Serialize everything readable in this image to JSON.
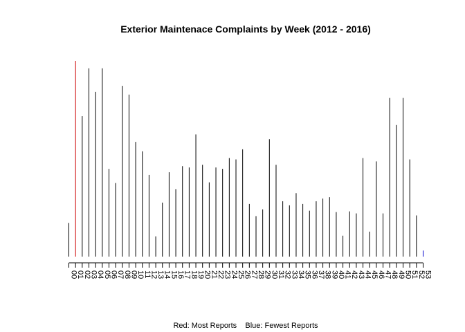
{
  "chart_data": {
    "type": "bar",
    "title": "Exterior Maintenace Complaints by Week (2012 - 2016)",
    "caption": "Red: Most Reports    Blue: Fewest Reports",
    "xlabel": "",
    "ylabel": "",
    "y_axis_visible": false,
    "grid": false,
    "legend": "none",
    "ylim": [
      0,
      29
    ],
    "categories": [
      "00",
      "01",
      "02",
      "03",
      "04",
      "05",
      "06",
      "07",
      "08",
      "09",
      "10",
      "11",
      "12",
      "13",
      "14",
      "15",
      "16",
      "17",
      "18",
      "19",
      "20",
      "21",
      "22",
      "23",
      "24",
      "25",
      "26",
      "27",
      "28",
      "29",
      "30",
      "31",
      "32",
      "33",
      "34",
      "35",
      "36",
      "37",
      "38",
      "39",
      "40",
      "41",
      "42",
      "43",
      "44",
      "45",
      "46",
      "47",
      "48",
      "49",
      "50",
      "51",
      "52",
      "53"
    ],
    "values": [
      5,
      29,
      20.8,
      27.9,
      24.4,
      27.9,
      13,
      10.9,
      25.3,
      24,
      17,
      15.6,
      12.1,
      3,
      8,
      12.5,
      10,
      13.4,
      13.2,
      18.1,
      13.6,
      11,
      13.2,
      13,
      14.6,
      14.4,
      15.9,
      7.8,
      6,
      7,
      17.4,
      13.6,
      8.2,
      7.6,
      9.4,
      7.8,
      6.8,
      8.2,
      8.6,
      8.8,
      6.6,
      3.1,
      6.7,
      6.4,
      14.6,
      3.7,
      14.1,
      6.4,
      23.5,
      19.5,
      23.5,
      14.4,
      6.1,
      0.9
    ],
    "colors": {
      "default": "#000000",
      "max": "#cc0000",
      "min": "#0000cc"
    }
  }
}
